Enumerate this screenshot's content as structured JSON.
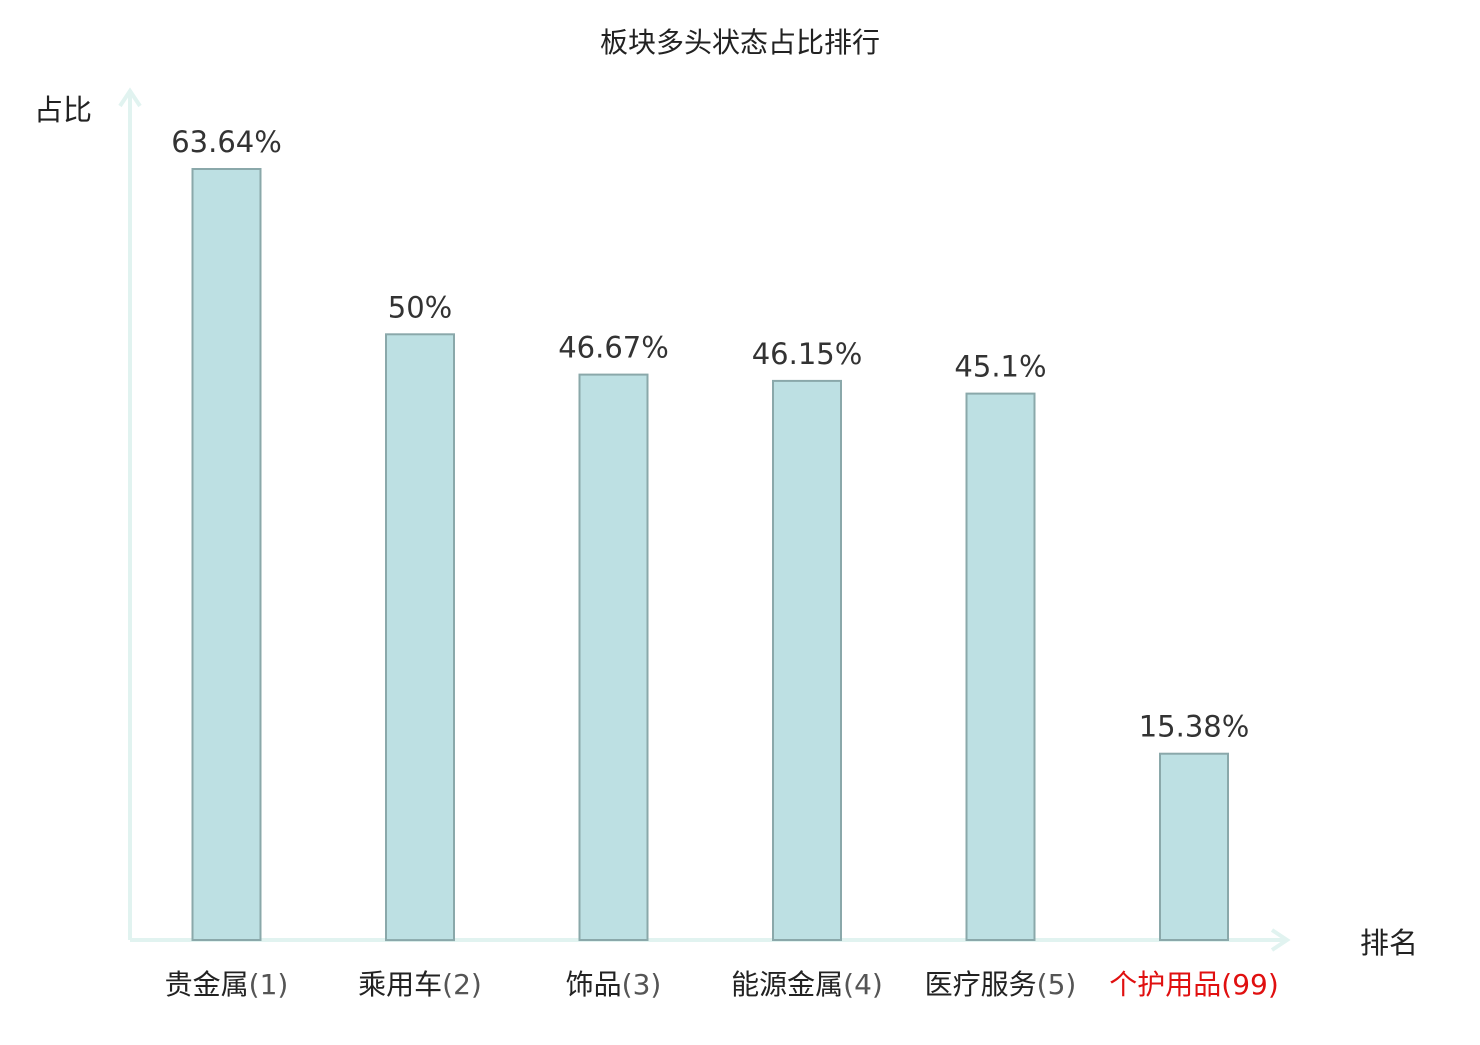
{
  "chart_data": {
    "type": "bar",
    "title": "板块多头状态占比排行",
    "ylabel": "占比",
    "xlabel": "排名",
    "categories": [
      {
        "name": "贵金属",
        "rank": "(1)",
        "highlight": false
      },
      {
        "name": "乘用车",
        "rank": "(2)",
        "highlight": false
      },
      {
        "name": "饰品",
        "rank": "(3)",
        "highlight": false
      },
      {
        "name": "能源金属",
        "rank": "(4)",
        "highlight": false
      },
      {
        "name": "医疗服务",
        "rank": "(5)",
        "highlight": false
      },
      {
        "name": "个护用品",
        "rank": "(99)",
        "highlight": true
      }
    ],
    "values": [
      63.64,
      50,
      46.67,
      46.15,
      45.1,
      15.38
    ],
    "value_labels": [
      "63.64%",
      "50%",
      "46.67%",
      "46.15%",
      "45.1%",
      "15.38%"
    ],
    "ylim": [
      0,
      70
    ],
    "grid": false,
    "legend": "none"
  },
  "colors": {
    "bar_fill": "#bde0e3",
    "bar_stroke": "#8aa8aa",
    "axis": "#e1f3f0",
    "text": "#333333",
    "category_text": "#222222",
    "rank_text": "#555555",
    "highlight": "#e01010"
  }
}
